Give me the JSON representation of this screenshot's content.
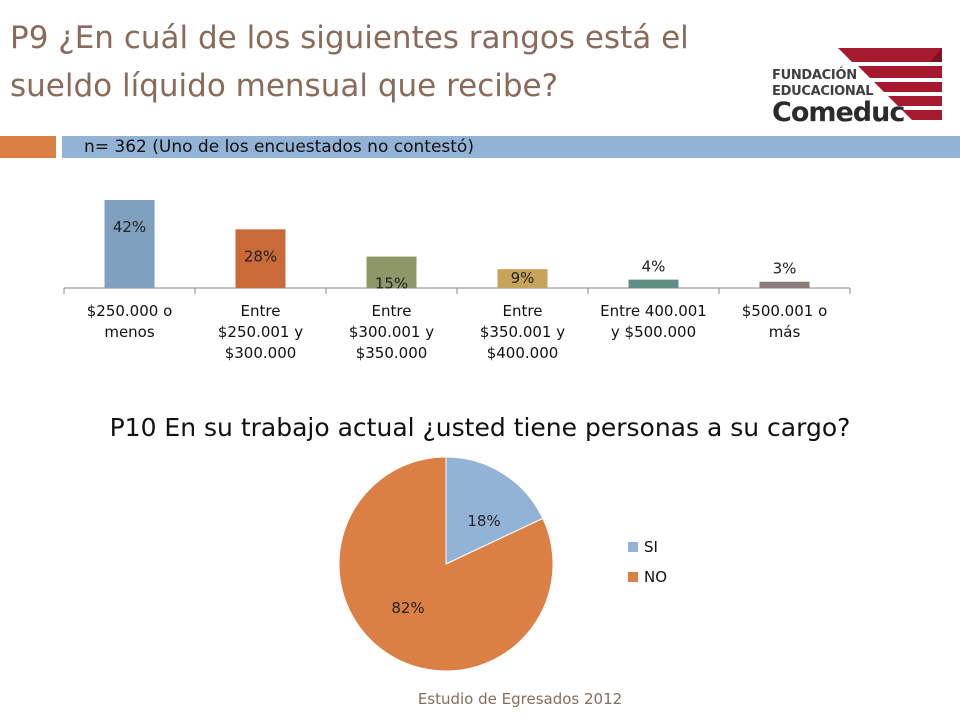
{
  "slide": {
    "title": "P9 ¿En cuál de los siguientes rangos está el sueldo líquido mensual que recibe?",
    "subtitle": "n= 362 (Uno de los encuestados no contestó)",
    "p10_title": "P10 En su trabajo actual ¿usted tiene personas a su cargo?",
    "footer": "Estudio de Egresados 2012"
  },
  "logo": {
    "line1": "FUNDACIÓN",
    "line2": "EDUCACIONAL",
    "line3": "Comeduc",
    "color": "#a6192e"
  },
  "chart_data": [
    {
      "type": "bar",
      "categories": [
        [
          "$250.000 o",
          "menos"
        ],
        [
          "Entre",
          "$250.001 y",
          "$300.000"
        ],
        [
          "Entre",
          "$300.001 y",
          "$350.000"
        ],
        [
          "Entre",
          "$350.001 y",
          "$400.000"
        ],
        [
          "Entre 400.001",
          "y $500.000"
        ],
        [
          "$500.001 o",
          "más"
        ]
      ],
      "values": [
        42,
        28,
        15,
        9,
        4,
        3
      ],
      "data_labels": [
        "42%",
        "28%",
        "15%",
        "9%",
        "4%",
        "3%"
      ],
      "colors": [
        "#7f9fbf",
        "#c96a38",
        "#8c9868",
        "#c6a45a",
        "#5f8f84",
        "#8a7a7a"
      ],
      "ylim": [
        0,
        42
      ],
      "grid": false
    },
    {
      "type": "pie",
      "labels": [
        "SI",
        "NO"
      ],
      "values": [
        18,
        82
      ],
      "data_labels": [
        "18%",
        "82%"
      ],
      "colors": [
        "#93b3d6",
        "#dc7f45"
      ],
      "legend": "right"
    }
  ]
}
